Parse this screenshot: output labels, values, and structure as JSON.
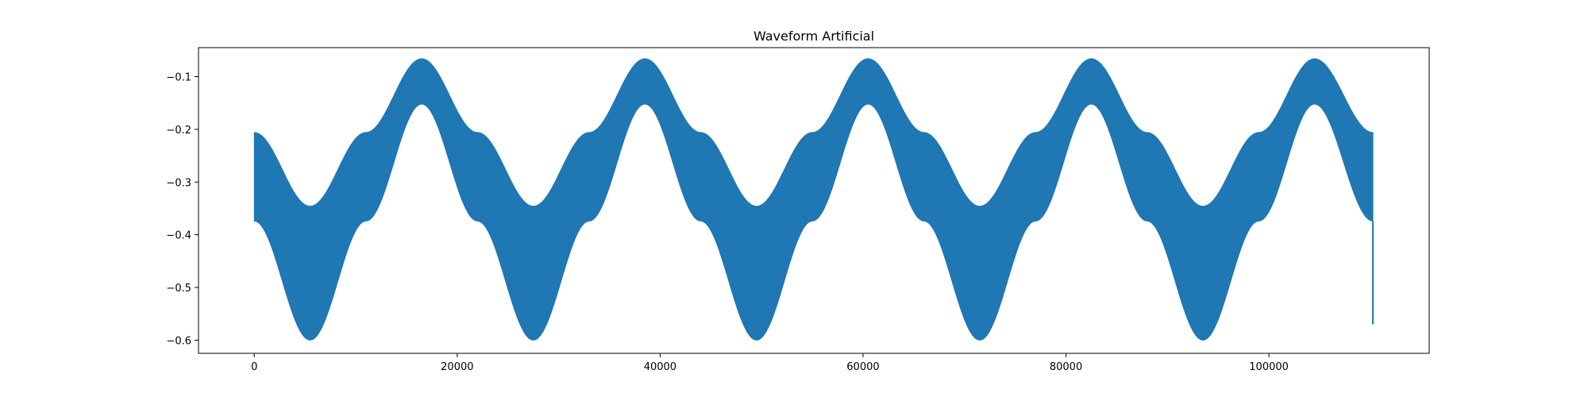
{
  "chart_data": {
    "type": "area",
    "title": "Waveform Artificial",
    "xlabel": "",
    "ylabel": "",
    "xlim": [
      -5500,
      115800
    ],
    "ylim": [
      -0.625,
      -0.045
    ],
    "x_ticks": [
      0,
      20000,
      40000,
      60000,
      80000,
      100000
    ],
    "x_tick_labels": [
      "0",
      "20000",
      "40000",
      "60000",
      "80000",
      "100000"
    ],
    "y_ticks": [
      -0.1,
      -0.2,
      -0.3,
      -0.4,
      -0.5,
      -0.6
    ],
    "y_tick_labels": [
      "−0.1",
      "−0.2",
      "−0.3",
      "−0.4",
      "−0.5",
      "−0.6"
    ],
    "grid": false,
    "legend": "none",
    "color": "#1f77b4",
    "series": [
      {
        "x": [
          0,
          5500,
          11000,
          16500,
          22000,
          27500,
          33000,
          38500,
          44000,
          49500,
          55000,
          60500,
          66000,
          71500,
          77000,
          82500,
          88000,
          93500,
          99000,
          104500,
          110250
        ],
        "upper": [
          -0.206,
          -0.346,
          -0.206,
          -0.066,
          -0.206,
          -0.346,
          -0.206,
          -0.066,
          -0.206,
          -0.346,
          -0.206,
          -0.066,
          -0.206,
          -0.346,
          -0.206,
          -0.066,
          -0.206,
          -0.346,
          -0.206,
          -0.066,
          -0.206
        ],
        "lower": [
          -0.374,
          -0.6,
          -0.374,
          -0.152,
          -0.374,
          -0.6,
          -0.374,
          -0.152,
          -0.374,
          -0.6,
          -0.374,
          -0.152,
          -0.374,
          -0.6,
          -0.374,
          -0.152,
          -0.374,
          -0.6,
          -0.374,
          -0.152,
          -0.374
        ]
      }
    ],
    "end_spike": {
      "x": 110250,
      "y_top": -0.374,
      "y_bottom": -0.57
    }
  }
}
